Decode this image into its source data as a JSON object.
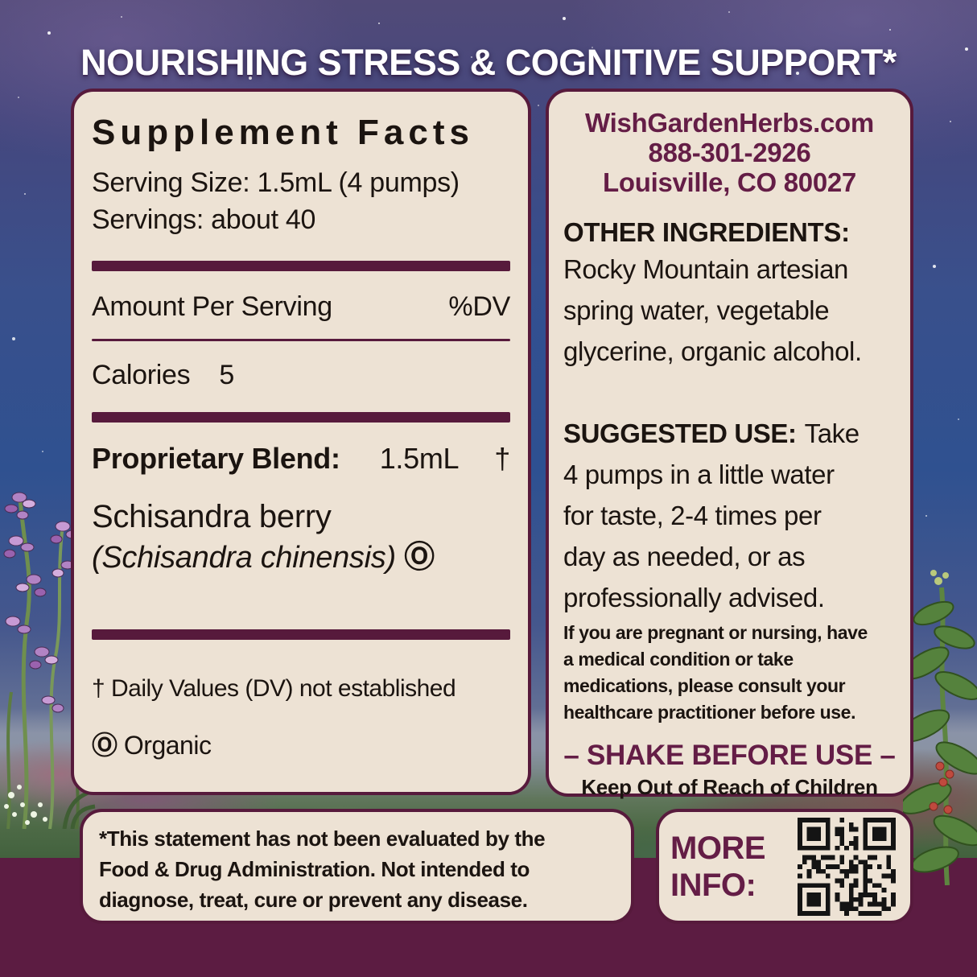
{
  "colors": {
    "accent_plum": "#571a3c",
    "band_plum": "#5c1c42",
    "panel_cream": "#ede2d4",
    "maroon_text": "#641d46",
    "text_black": "#1b1410"
  },
  "header": {
    "title": "NOURISHING STRESS & COGNITIVE SUPPORT*"
  },
  "supplement_facts": {
    "title": "Supplement Facts",
    "serving_size": "Serving Size: 1.5mL (4 pumps)",
    "servings": "Servings: about 40",
    "amount_per_serving": "Amount Per Serving",
    "dv_header": "%DV",
    "calories_label": "Calories",
    "calories_value": "5",
    "blend_label": "Proprietary Blend:",
    "blend_amount": "1.5mL",
    "blend_dv_symbol": "†",
    "ingredient_name": "Schisandra berry",
    "ingredient_latin": "(Schisandra chinensis)",
    "organic_symbol": "Ⓞ",
    "dagger_footnote": "† Daily Values (DV) not established",
    "organic_footnote_symbol": "Ⓞ",
    "organic_footnote_label": "Organic"
  },
  "info_panel": {
    "website": "WishGardenHerbs.com",
    "phone": "888-301-2926",
    "address": "Louisville, CO 80027",
    "other_ingredients_label": "OTHER INGREDIENTS:",
    "other_ingredients_text": "Rocky Mountain artesian\nspring water, vegetable\nglycerine, organic alcohol.",
    "suggested_use_label": "SUGGESTED USE:",
    "suggested_use_text": "Take\n4 pumps in a little water\nfor taste, 2-4 times per\nday as needed, or as\nprofessionally advised.",
    "pregnancy_warning": "If you are pregnant or nursing, have\na medical condition or take\nmedications, please consult your\nhealthcare practitioner before use.",
    "shake_notice": "– SHAKE BEFORE USE –",
    "keep_out_notice": "Keep Out of Reach of Children"
  },
  "footer": {
    "fda_disclaimer": "*This statement has not been evaluated by the\nFood & Drug Administration. Not intended to\ndiagnose, treat, cure or prevent any disease.",
    "more_info_label": "MORE INFO:"
  }
}
